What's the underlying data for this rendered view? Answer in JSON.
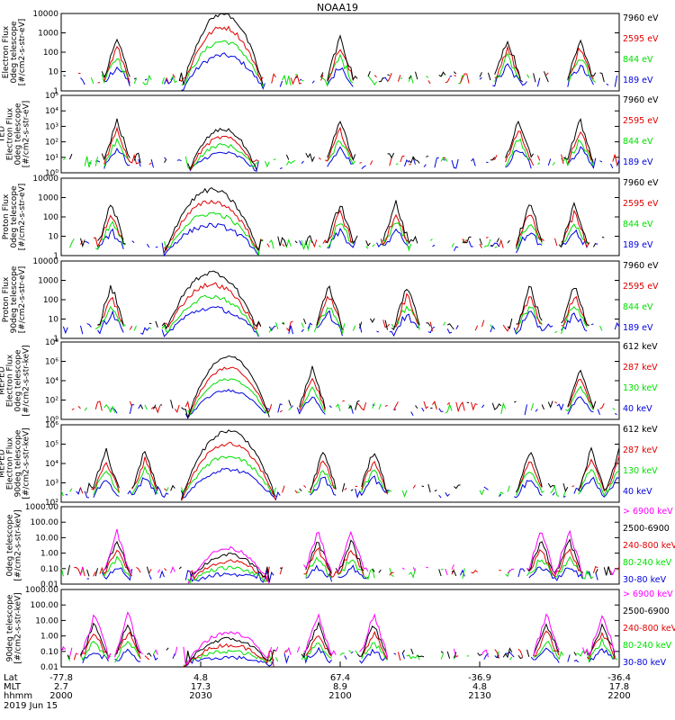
{
  "title": "NOAA19",
  "colors": {
    "black": "#000000",
    "red": "#e00000",
    "green": "#00e000",
    "blue": "#0000e0",
    "magenta": "#ff00ff"
  },
  "chart_data": [
    {
      "type": "line",
      "ylog": true,
      "ylim": [
        1,
        10000
      ],
      "ytick_labels": [
        "10000",
        "1000",
        "100",
        "10",
        "1"
      ],
      "ylabel": [
        "Electron Flux",
        "0deg telescope",
        "[#/cm2-s-str-eV]"
      ],
      "legend": [
        "7960 eV",
        "2595 eV",
        "844 eV",
        "189 eV"
      ],
      "shape": {
        "hump": [
          0.29,
          0.06,
          4.0
        ],
        "bursts": [
          0.1,
          0.5,
          0.8,
          0.93
        ]
      }
    },
    {
      "type": "line",
      "ylog": true,
      "ylim": [
        1,
        100000
      ],
      "ytick_labels": [
        "10⁵",
        "10⁴",
        "10³",
        "10²",
        "10¹",
        "10⁰"
      ],
      "ylabel": [
        "TED",
        "Electron Flux",
        "0deg telescope",
        "[#/cm2-s-str-eV]"
      ],
      "legend": [
        "7960 eV",
        "2595 eV",
        "844 eV",
        "189 eV"
      ],
      "shape": {
        "hump": [
          0.29,
          0.05,
          2.8
        ],
        "bursts": [
          0.1,
          0.5,
          0.82,
          0.93
        ]
      }
    },
    {
      "type": "line",
      "ylog": true,
      "ylim": [
        1,
        10000
      ],
      "ytick_labels": [
        "10000",
        "1000",
        "100",
        "10",
        "1"
      ],
      "ylabel": [
        "Proton Flux",
        "0deg telescope",
        "[#/cm2-s-str-eV]"
      ],
      "legend": [
        "7960 eV",
        "2595 eV",
        "844 eV",
        "189 eV"
      ],
      "shape": {
        "hump": [
          0.27,
          0.07,
          3.4
        ],
        "bursts": [
          0.09,
          0.5,
          0.6,
          0.84,
          0.92
        ]
      }
    },
    {
      "type": "line",
      "ylog": true,
      "ylim": [
        1,
        10000
      ],
      "ytick_labels": [
        "10000",
        "1000",
        "100",
        "10",
        "1"
      ],
      "ylabel": [
        "Proton Flux",
        "90deg telescope",
        "[#/cm2-s-str-eV]"
      ],
      "legend": [
        "7960 eV",
        "2595 eV",
        "844 eV",
        "189 eV"
      ],
      "shape": {
        "hump": [
          0.27,
          0.07,
          3.4
        ],
        "bursts": [
          0.09,
          0.48,
          0.62,
          0.84,
          0.92
        ]
      }
    },
    {
      "type": "line",
      "ylog": true,
      "ylim": [
        1,
        100000000
      ],
      "ytick_labels": [
        "10⁸",
        "10⁶",
        "10⁴",
        "10²",
        "10⁰"
      ],
      "ylabel": [
        "MEPED",
        "Electron Flux",
        "0deg telescope",
        "[#/cm2-s-str-keV]"
      ],
      "legend": [
        "612 keV",
        "287 keV",
        "130 keV",
        "40 keV"
      ],
      "shape": {
        "hump": [
          0.3,
          0.06,
          6.5
        ],
        "bursts": [
          0.45,
          0.93
        ]
      }
    },
    {
      "type": "line",
      "ylog": true,
      "ylim": [
        10,
        1000000
      ],
      "ytick_labels": [
        "10⁶",
        "10⁵",
        "10⁴",
        "10³",
        "10²"
      ],
      "ylabel": [
        "MEPED",
        "Electron Flux",
        "90deg telescope",
        "[#/cm2-s-str-keV]"
      ],
      "legend": [
        "612 keV",
        "287 keV",
        "130 keV",
        "40 keV"
      ],
      "shape": {
        "hump": [
          0.3,
          0.07,
          4.6
        ],
        "bursts": [
          0.08,
          0.15,
          0.47,
          0.56,
          0.84,
          0.95,
          1.0
        ]
      }
    },
    {
      "type": "line",
      "ylog": true,
      "ylim": [
        0.01,
        1000
      ],
      "ytick_labels": [
        "1000.00",
        "100.00",
        "10.00",
        "1.00",
        "0.10",
        "0.01"
      ],
      "ylabel": [
        "0deg telescope",
        "[#/cm2-s-str-keV]"
      ],
      "legend": [
        "> 6900 keV",
        "2500-6900",
        "240-800 keV",
        "80-240 keV",
        "30-80 keV"
      ],
      "shape": {
        "hump": [
          0.3,
          0.06,
          2.3
        ],
        "bursts": [
          0.1,
          0.46,
          0.52,
          0.86,
          0.91
        ]
      }
    },
    {
      "type": "line",
      "ylog": true,
      "ylim": [
        0.01,
        1000
      ],
      "ytick_labels": [
        "1000.00",
        "100.00",
        "10.00",
        "1.00",
        "0.10",
        "0.01"
      ],
      "ylabel": [
        "90deg telescope",
        "[#/cm2-s-str-keV]"
      ],
      "legend": [
        "> 6900 keV",
        "2500-6900",
        "240-800 keV",
        "80-240 keV",
        "30-80 keV"
      ],
      "shape": {
        "hump": [
          0.3,
          0.065,
          2.2
        ],
        "bursts": [
          0.06,
          0.12,
          0.46,
          0.56,
          0.87,
          0.97
        ]
      }
    }
  ],
  "xaxis": {
    "row_labels": [
      "Lat",
      "MLT",
      "hhmm"
    ],
    "ticks": [
      {
        "lat": "-77.8",
        "mlt": "2.7",
        "hhmm": "2000"
      },
      {
        "lat": "4.8",
        "mlt": "17.3",
        "hhmm": "2030"
      },
      {
        "lat": "67.4",
        "mlt": "8.9",
        "hhmm": "2100"
      },
      {
        "lat": "-36.9",
        "mlt": "4.8",
        "hhmm": "2130"
      },
      {
        "lat": "-36.4",
        "mlt": "17.8",
        "hhmm": "2200"
      }
    ],
    "date": "2019 Jun 15"
  }
}
